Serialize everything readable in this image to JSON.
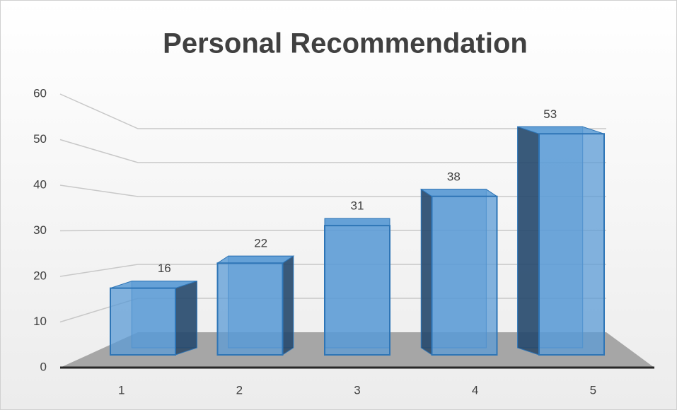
{
  "chart_data": {
    "type": "bar3d",
    "title": "Personal Recommendation",
    "categories": [
      "1",
      "2",
      "3",
      "4",
      "5"
    ],
    "values": [
      16,
      22,
      31,
      38,
      53
    ],
    "color": "#5b9bd5",
    "ylim": [
      0,
      60
    ],
    "yticks": [
      0,
      10,
      20,
      30,
      40,
      50,
      60
    ],
    "grid": true
  }
}
